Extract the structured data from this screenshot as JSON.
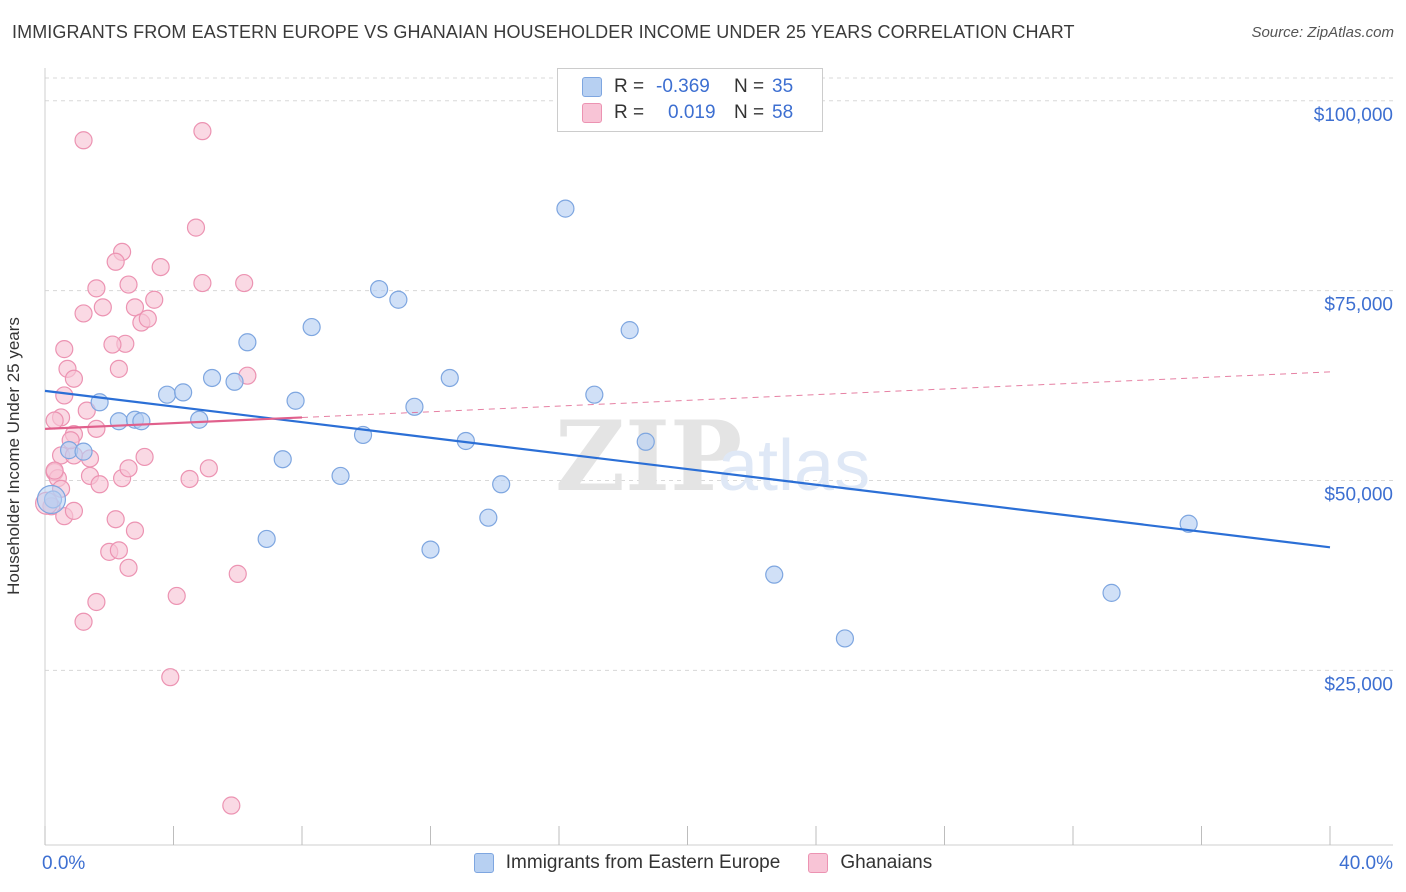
{
  "title": "IMMIGRANTS FROM EASTERN EUROPE VS GHANAIAN HOUSEHOLDER INCOME UNDER 25 YEARS CORRELATION CHART",
  "source": "Source: ZipAtlas.com",
  "legend_top": [
    {
      "r_label": "R =",
      "r_value": "-0.369",
      "n_label": "N =",
      "n_value": "35"
    },
    {
      "r_label": "R =",
      "r_value": "0.019",
      "n_label": "N =",
      "n_value": "58"
    }
  ],
  "colors": {
    "blue_fill": "#b7d0f2",
    "blue_stroke": "#7ea6e0",
    "blue_line": "#2b6fd6",
    "pink_fill": "#f8c4d6",
    "pink_stroke": "#ec93b2",
    "pink_line": "#e0608c",
    "axis_text": "#3d6fd1",
    "grid": "#d8d8d8"
  },
  "chart_data": {
    "type": "scatter",
    "title": "IMMIGRANTS FROM EASTERN EUROPE VS GHANAIAN HOUSEHOLDER INCOME UNDER 25 YEARS CORRELATION CHART",
    "xlabel": "",
    "ylabel": "Householder Income Under 25 years",
    "xlim": [
      0,
      40
    ],
    "ylim": [
      2000,
      103000
    ],
    "x_tick_labels": [
      "0.0%",
      "40.0%"
    ],
    "y_ticks": [
      25000,
      50000,
      75000,
      100000
    ],
    "y_tick_labels": [
      "$25,000",
      "$50,000",
      "$75,000",
      "$100,000"
    ],
    "watermark": {
      "zip": "ZIP",
      "atlas": "atlas"
    },
    "series": [
      {
        "name": "Immigrants from Eastern Europe",
        "color": "blue",
        "points": [
          [
            0.25,
            47500
          ],
          [
            0.75,
            54000
          ],
          [
            1.7,
            60300
          ],
          [
            2.3,
            57800
          ],
          [
            2.8,
            58000
          ],
          [
            3.0,
            57800
          ],
          [
            3.8,
            61300
          ],
          [
            4.3,
            61600
          ],
          [
            4.8,
            58000
          ],
          [
            5.2,
            63500
          ],
          [
            5.9,
            63000
          ],
          [
            6.3,
            68200
          ],
          [
            6.9,
            42300
          ],
          [
            7.4,
            52800
          ],
          [
            7.8,
            60500
          ],
          [
            8.3,
            70200
          ],
          [
            9.2,
            50600
          ],
          [
            9.9,
            56000
          ],
          [
            10.4,
            75200
          ],
          [
            11.0,
            73800
          ],
          [
            11.5,
            59700
          ],
          [
            12.0,
            40900
          ],
          [
            12.6,
            63500
          ],
          [
            13.1,
            55200
          ],
          [
            13.8,
            45100
          ],
          [
            14.2,
            49500
          ],
          [
            16.2,
            85800
          ],
          [
            17.1,
            61300
          ],
          [
            18.2,
            69800
          ],
          [
            18.7,
            55100
          ],
          [
            22.7,
            37600
          ],
          [
            24.9,
            29200
          ],
          [
            33.2,
            35200
          ],
          [
            35.6,
            44300
          ],
          [
            1.2,
            53800
          ]
        ],
        "trend": {
          "x": [
            0,
            40
          ],
          "y": [
            61800,
            41200
          ],
          "style": "solid"
        }
      },
      {
        "name": "Ghanaians",
        "color": "pink",
        "points": [
          [
            1.2,
            94800
          ],
          [
            4.9,
            96000
          ],
          [
            1.6,
            75300
          ],
          [
            1.8,
            72800
          ],
          [
            2.4,
            80100
          ],
          [
            2.6,
            75800
          ],
          [
            2.8,
            72800
          ],
          [
            3.0,
            70800
          ],
          [
            2.2,
            78800
          ],
          [
            2.5,
            68000
          ],
          [
            2.1,
            67900
          ],
          [
            1.2,
            72000
          ],
          [
            0.6,
            67300
          ],
          [
            0.7,
            64700
          ],
          [
            0.9,
            63400
          ],
          [
            2.3,
            64700
          ],
          [
            3.6,
            78100
          ],
          [
            4.7,
            83300
          ],
          [
            3.2,
            71300
          ],
          [
            3.4,
            73800
          ],
          [
            4.9,
            76000
          ],
          [
            6.2,
            76000
          ],
          [
            6.3,
            63800
          ],
          [
            0.6,
            61200
          ],
          [
            0.5,
            58300
          ],
          [
            0.3,
            57900
          ],
          [
            0.9,
            56100
          ],
          [
            1.6,
            56800
          ],
          [
            0.5,
            53300
          ],
          [
            1.4,
            52900
          ],
          [
            0.3,
            51100
          ],
          [
            0.4,
            50300
          ],
          [
            1.4,
            50600
          ],
          [
            1.7,
            49500
          ],
          [
            2.4,
            50300
          ],
          [
            2.6,
            51600
          ],
          [
            3.1,
            53100
          ],
          [
            0.9,
            53300
          ],
          [
            0.2,
            46600
          ],
          [
            0.6,
            45300
          ],
          [
            0.9,
            46000
          ],
          [
            2.2,
            44900
          ],
          [
            2.8,
            43400
          ],
          [
            2.0,
            40600
          ],
          [
            2.3,
            40800
          ],
          [
            2.6,
            38500
          ],
          [
            1.6,
            34000
          ],
          [
            4.1,
            34800
          ],
          [
            1.2,
            31400
          ],
          [
            4.5,
            50200
          ],
          [
            5.1,
            51600
          ],
          [
            6.0,
            37700
          ],
          [
            3.9,
            24100
          ],
          [
            5.8,
            7200
          ],
          [
            0.3,
            51300
          ],
          [
            1.3,
            59200
          ],
          [
            0.5,
            48900
          ],
          [
            0.8,
            55300
          ]
        ],
        "trend": {
          "x": [
            0,
            8
          ],
          "y": [
            56800,
            58300
          ],
          "style": "solid",
          "extension": {
            "x": [
              8,
              40
            ],
            "y": [
              58300,
              64300
            ],
            "style": "dashed"
          }
        }
      }
    ]
  }
}
